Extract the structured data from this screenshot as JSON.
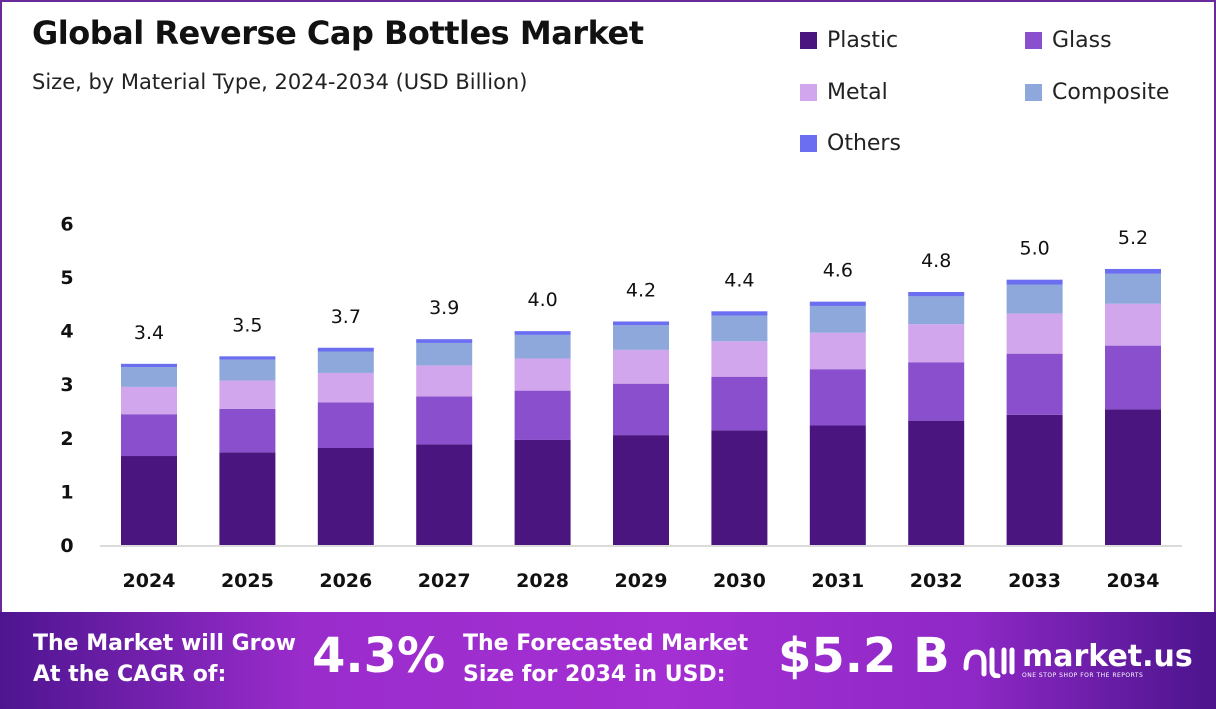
{
  "chart_data": {
    "type": "bar",
    "stacked": true,
    "title": "Global Reverse Cap Bottles Market",
    "subtitle": "Size, by Material Type, 2024-2034 (USD Billion)",
    "categories": [
      "2024",
      "2025",
      "2026",
      "2027",
      "2028",
      "2029",
      "2030",
      "2031",
      "2032",
      "2033",
      "2034"
    ],
    "series": [
      {
        "name": "Plastic",
        "color": "#4b1580",
        "values": [
          1.66,
          1.73,
          1.81,
          1.88,
          1.96,
          2.05,
          2.14,
          2.23,
          2.32,
          2.43,
          2.53
        ]
      },
      {
        "name": "Glass",
        "color": "#8a4fcc",
        "values": [
          0.78,
          0.81,
          0.85,
          0.89,
          0.92,
          0.96,
          1.0,
          1.05,
          1.09,
          1.14,
          1.19
        ]
      },
      {
        "name": "Metal",
        "color": "#d1a6ec",
        "values": [
          0.51,
          0.53,
          0.55,
          0.58,
          0.6,
          0.63,
          0.66,
          0.68,
          0.71,
          0.75,
          0.78
        ]
      },
      {
        "name": "Composite",
        "color": "#8fa8dc",
        "values": [
          0.37,
          0.39,
          0.4,
          0.42,
          0.44,
          0.46,
          0.48,
          0.5,
          0.52,
          0.54,
          0.56
        ]
      },
      {
        "name": "Others",
        "color": "#6b6ef0",
        "values": [
          0.06,
          0.06,
          0.07,
          0.07,
          0.07,
          0.07,
          0.08,
          0.08,
          0.08,
          0.09,
          0.09
        ]
      }
    ],
    "totals_labels": [
      "3.4",
      "3.5",
      "3.7",
      "3.9",
      "4.0",
      "4.2",
      "4.4",
      "4.6",
      "4.8",
      "5.0",
      "5.2"
    ],
    "ylim": [
      0,
      6
    ],
    "yticks": [
      "0",
      "1",
      "2",
      "3",
      "4",
      "5",
      "6"
    ],
    "grid": false,
    "legend_position": "top-right"
  },
  "banner": {
    "cagr_text_1": "The Market will Grow",
    "cagr_text_2": "At the CAGR of:",
    "cagr_value": "4.3%",
    "forecast_text_1": "The Forecasted Market",
    "forecast_text_2": "Size for 2034 in USD:",
    "forecast_value": "$5.2 B",
    "logo_name": "market.us",
    "logo_tagline": "ONE STOP SHOP FOR THE REPORTS"
  }
}
